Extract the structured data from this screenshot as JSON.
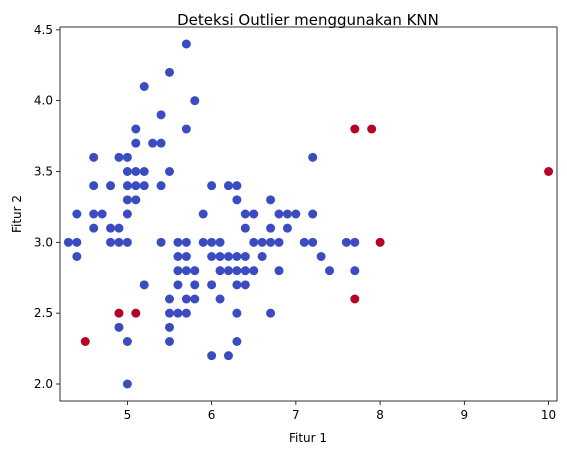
{
  "chart_data": {
    "type": "scatter",
    "title": "Deteksi Outlier menggunakan KNN",
    "xlabel": "Fitur 1",
    "ylabel": "Fitur 2",
    "xlim": [
      4.2,
      10.1
    ],
    "ylim": [
      1.88,
      4.52
    ],
    "xticks": [
      5,
      6,
      7,
      8,
      9,
      10
    ],
    "yticks": [
      2.0,
      2.5,
      3.0,
      3.5,
      4.0,
      4.5
    ],
    "grid": false,
    "legend": "none",
    "colors": {
      "inlier": "#3b4cc0",
      "outlier": "#b40426"
    },
    "series": [
      {
        "kind": "inlier",
        "points": [
          [
            4.3,
            3.0
          ],
          [
            4.4,
            3.2
          ],
          [
            4.4,
            3.0
          ],
          [
            4.4,
            2.9
          ],
          [
            4.6,
            3.6
          ],
          [
            4.6,
            3.4
          ],
          [
            4.6,
            3.2
          ],
          [
            4.6,
            3.1
          ],
          [
            4.7,
            3.2
          ],
          [
            4.8,
            3.4
          ],
          [
            4.8,
            3.1
          ],
          [
            4.8,
            3.0
          ],
          [
            4.9,
            3.1
          ],
          [
            4.9,
            3.0
          ],
          [
            4.9,
            3.6
          ],
          [
            4.9,
            2.4
          ],
          [
            5.0,
            3.6
          ],
          [
            5.0,
            3.5
          ],
          [
            5.0,
            3.4
          ],
          [
            5.0,
            3.3
          ],
          [
            5.0,
            3.2
          ],
          [
            5.0,
            3.0
          ],
          [
            5.0,
            2.3
          ],
          [
            5.0,
            2.0
          ],
          [
            5.1,
            3.8
          ],
          [
            5.1,
            3.7
          ],
          [
            5.1,
            3.5
          ],
          [
            5.1,
            3.4
          ],
          [
            5.1,
            3.3
          ],
          [
            5.2,
            4.1
          ],
          [
            5.2,
            3.5
          ],
          [
            5.2,
            3.4
          ],
          [
            5.2,
            2.7
          ],
          [
            5.3,
            3.7
          ],
          [
            5.4,
            3.9
          ],
          [
            5.4,
            3.7
          ],
          [
            5.4,
            3.4
          ],
          [
            5.4,
            3.0
          ],
          [
            5.5,
            4.2
          ],
          [
            5.5,
            3.5
          ],
          [
            5.5,
            2.6
          ],
          [
            5.5,
            2.5
          ],
          [
            5.5,
            2.4
          ],
          [
            5.5,
            2.3
          ],
          [
            5.6,
            3.0
          ],
          [
            5.6,
            2.9
          ],
          [
            5.6,
            2.8
          ],
          [
            5.6,
            2.7
          ],
          [
            5.6,
            2.5
          ],
          [
            5.7,
            4.4
          ],
          [
            5.7,
            3.8
          ],
          [
            5.7,
            3.0
          ],
          [
            5.7,
            2.9
          ],
          [
            5.7,
            2.8
          ],
          [
            5.7,
            2.6
          ],
          [
            5.7,
            2.5
          ],
          [
            5.8,
            4.0
          ],
          [
            5.8,
            2.8
          ],
          [
            5.8,
            2.7
          ],
          [
            5.8,
            2.6
          ],
          [
            5.9,
            3.2
          ],
          [
            5.9,
            3.0
          ],
          [
            6.0,
            3.4
          ],
          [
            6.0,
            3.0
          ],
          [
            6.0,
            2.9
          ],
          [
            6.0,
            2.7
          ],
          [
            6.0,
            2.2
          ],
          [
            6.1,
            3.0
          ],
          [
            6.1,
            2.9
          ],
          [
            6.1,
            2.8
          ],
          [
            6.1,
            2.6
          ],
          [
            6.2,
            3.4
          ],
          [
            6.2,
            2.9
          ],
          [
            6.2,
            2.8
          ],
          [
            6.2,
            2.2
          ],
          [
            6.3,
            3.4
          ],
          [
            6.3,
            3.3
          ],
          [
            6.3,
            2.9
          ],
          [
            6.3,
            2.8
          ],
          [
            6.3,
            2.7
          ],
          [
            6.3,
            2.5
          ],
          [
            6.3,
            2.3
          ],
          [
            6.4,
            3.2
          ],
          [
            6.4,
            3.1
          ],
          [
            6.4,
            2.9
          ],
          [
            6.4,
            2.8
          ],
          [
            6.4,
            2.7
          ],
          [
            6.5,
            3.2
          ],
          [
            6.5,
            3.0
          ],
          [
            6.5,
            2.8
          ],
          [
            6.6,
            3.0
          ],
          [
            6.6,
            2.9
          ],
          [
            6.7,
            3.3
          ],
          [
            6.7,
            3.1
          ],
          [
            6.7,
            3.0
          ],
          [
            6.7,
            2.5
          ],
          [
            6.8,
            3.2
          ],
          [
            6.8,
            3.0
          ],
          [
            6.8,
            2.8
          ],
          [
            6.9,
            3.2
          ],
          [
            6.9,
            3.1
          ],
          [
            7.0,
            3.2
          ],
          [
            7.1,
            3.0
          ],
          [
            7.2,
            3.6
          ],
          [
            7.2,
            3.2
          ],
          [
            7.2,
            3.0
          ],
          [
            7.3,
            2.9
          ],
          [
            7.4,
            2.8
          ],
          [
            7.6,
            3.0
          ],
          [
            7.7,
            3.0
          ],
          [
            7.7,
            2.8
          ]
        ]
      },
      {
        "kind": "outlier",
        "points": [
          [
            4.5,
            2.3
          ],
          [
            4.9,
            2.5
          ],
          [
            5.1,
            2.5
          ],
          [
            7.7,
            3.8
          ],
          [
            7.9,
            3.8
          ],
          [
            8.0,
            3.0
          ],
          [
            7.7,
            2.6
          ],
          [
            10.0,
            3.5
          ]
        ]
      }
    ]
  }
}
